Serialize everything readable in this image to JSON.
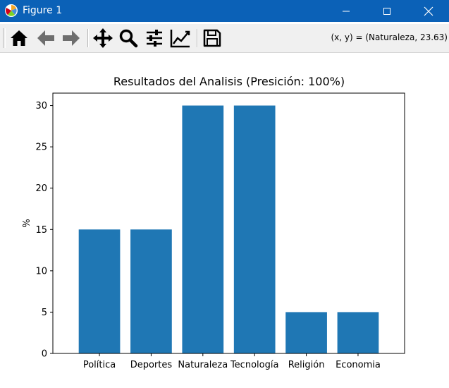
{
  "window": {
    "title": "Figure 1"
  },
  "toolbar": {
    "buttons": [
      "home-icon",
      "back-arrow-icon",
      "forward-arrow-icon",
      "pan-icon",
      "zoom-icon",
      "configure-subplots-icon",
      "edit-axis-icon",
      "save-icon"
    ],
    "coords": "(x, y) = (Naturaleza, 23.63)"
  },
  "colors": {
    "titlebar": "#0b61b7",
    "bar": "#1f77b4",
    "toolbar": "#f0f0f0"
  },
  "chart_data": {
    "type": "bar",
    "title": "Resultados del Analisis (Presición: 100%)",
    "xlabel": "",
    "ylabel": "%",
    "categories": [
      "Política",
      "Deportes",
      "Naturaleza",
      "Tecnología",
      "Religión",
      "Economia"
    ],
    "values": [
      15,
      15,
      30,
      30,
      5,
      5
    ],
    "yticks": [
      "0",
      "5",
      "10",
      "15",
      "20",
      "25",
      "30"
    ],
    "ylim": [
      0,
      31.5
    ],
    "grid": false
  }
}
